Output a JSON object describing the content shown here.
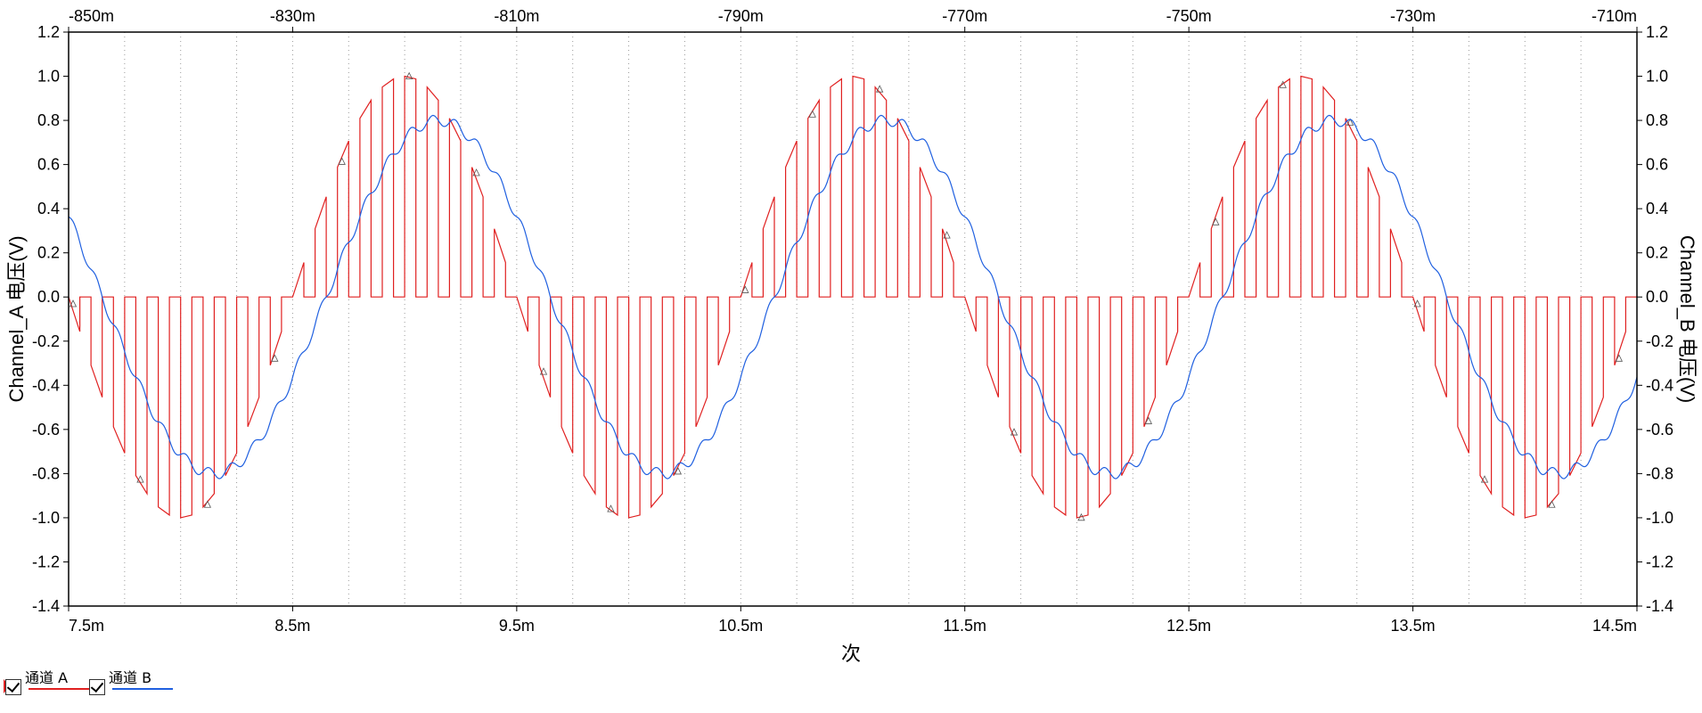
{
  "chart_data": {
    "type": "line",
    "xlabel": "次",
    "ylabel_left": "Channel_A 电压(V)",
    "ylabel_right": "Channel_B 电压(V)",
    "xlim": [
      0.0075,
      0.0145
    ],
    "ylim": [
      -1.4,
      1.2
    ],
    "x_ticks": [
      0.0075,
      0.0085,
      0.0095,
      0.0105,
      0.0115,
      0.0125,
      0.0135,
      0.0145
    ],
    "x_tick_labels": [
      "7.5m",
      "8.5m",
      "9.5m",
      "10.5m",
      "11.5m",
      "12.5m",
      "13.5m",
      "14.5m"
    ],
    "top_axis": {
      "xlim": [
        -0.85,
        -0.71
      ],
      "tick_values": [
        -0.85,
        -0.83,
        -0.81,
        -0.79,
        -0.77,
        -0.75,
        -0.73,
        -0.71
      ],
      "tick_labels": [
        "-850m",
        "-830m",
        "-810m",
        "-790m",
        "-770m",
        "-750m",
        "-730m",
        "-710m"
      ]
    },
    "y_ticks": [
      1.2,
      1.0,
      0.8,
      0.6,
      0.4,
      0.2,
      0.0,
      -0.2,
      -0.4,
      -0.6,
      -0.8,
      -1.0,
      -1.2,
      -1.4
    ],
    "y_tick_labels": [
      "1.2",
      "1.0",
      "0.8",
      "0.6",
      "0.4",
      "0.2",
      "0.0",
      "-0.2",
      "-0.4",
      "-0.6",
      "-0.8",
      "-1.0",
      "-1.2",
      "-1.4"
    ],
    "grid": "dotted-vertical",
    "legend_placement": "bottom-left",
    "series": [
      {
        "name": "通道 A",
        "color": "#e02020",
        "style": "pwm-spwm",
        "signal": {
          "period": 0.002,
          "amplitude": 1.0,
          "phase_ref_x": 0.0075,
          "pulse_period": 0.0001,
          "pulse_width_fraction": 0.5
        },
        "markers": "triangle"
      },
      {
        "name": "通道 B",
        "color": "#2060e0",
        "style": "filtered-sine",
        "signal": {
          "period": 0.002,
          "amplitude": 0.8,
          "peak_x": 0.00915,
          "ripple_amplitude": 0.025
        }
      }
    ]
  },
  "legend": {
    "items": [
      {
        "label": "通道 A",
        "color": "#e02020"
      },
      {
        "label": "通道 B",
        "color": "#2060e0"
      }
    ]
  }
}
